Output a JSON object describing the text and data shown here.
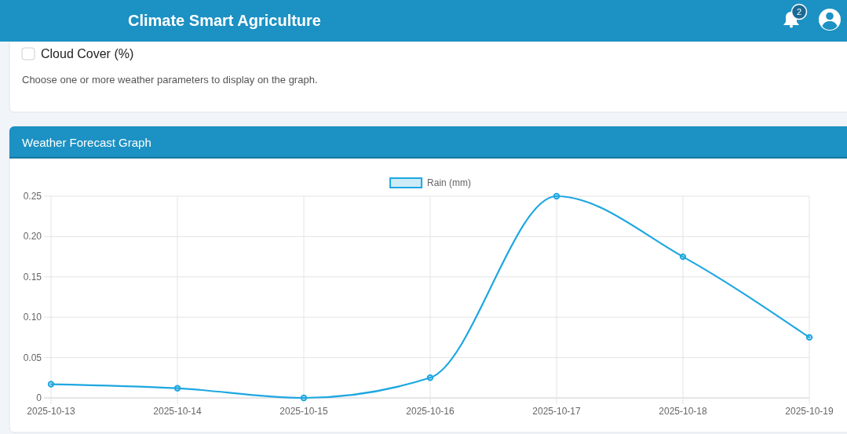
{
  "chart_data": {
    "type": "line",
    "title": "Weather Forecast Graph",
    "annotations": [
      "Climate Smart Agriculture",
      "Cloud Cover (%)",
      "Choose one or more weather parameters to display on the graph.",
      "2"
    ],
    "categories": [
      "2025-10-13",
      "2025-10-14",
      "2025-10-15",
      "2025-10-16",
      "2025-10-17",
      "2025-10-18",
      "2025-10-19"
    ],
    "series": [
      {
        "name": "Rain (mm)",
        "color": "#1ea7e1",
        "values": [
          0.017,
          0.012,
          0,
          0.025,
          0.25,
          0.175,
          0.075
        ]
      }
    ],
    "ylim": [
      0,
      0.25
    ],
    "yticks": [
      0,
      0.05,
      {
        "value": 0.1,
        "label": "0.10"
      },
      0.15,
      {
        "value": 0.2,
        "label": "0.20"
      },
      0.25
    ],
    "grid": true,
    "legend": "top",
    "marker": "circle"
  }
}
